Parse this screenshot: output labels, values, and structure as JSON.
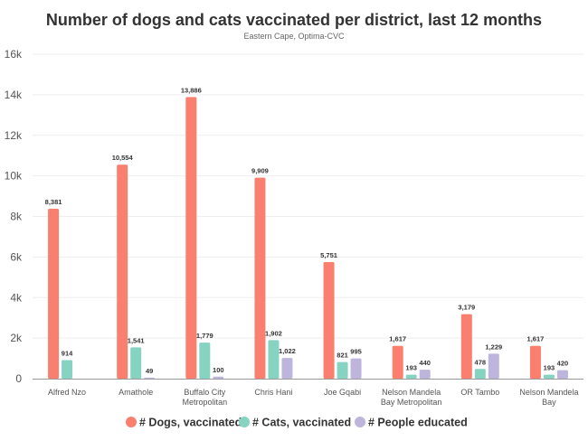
{
  "chart_data": {
    "type": "bar",
    "title": "Number of dogs and cats vaccinated per district, last 12 months",
    "subtitle": "Eastern Cape, Optima-CVC",
    "xlabel": "",
    "ylabel": "",
    "ylim": [
      0,
      16000
    ],
    "yticks": [
      0,
      2000,
      4000,
      6000,
      8000,
      10000,
      12000,
      14000,
      16000
    ],
    "ytick_labels": [
      "0",
      "2k",
      "4k",
      "6k",
      "8k",
      "10k",
      "12k",
      "14k",
      "16k"
    ],
    "grid": true,
    "legend_position": "bottom",
    "categories": [
      [
        "Alfred Nzo"
      ],
      [
        "Amathole"
      ],
      [
        "Buffalo City",
        "Metropolitan"
      ],
      [
        "Chris Hani"
      ],
      [
        "Joe Gqabi"
      ],
      [
        "Nelson Mandela",
        "Bay Metropolitan"
      ],
      [
        "OR Tambo"
      ],
      [
        "Nelson Mandela",
        "Bay"
      ]
    ],
    "series": [
      {
        "name": "# Dogs, vaccinated",
        "color": "#fa7f6f",
        "values": [
          8381,
          10554,
          13886,
          9909,
          5751,
          1617,
          3179,
          1617
        ],
        "labels": [
          "8,381",
          "10,554",
          "13,886",
          "9,909",
          "5,751",
          "1,617",
          "3,179",
          "1,617"
        ]
      },
      {
        "name": "# Cats, vaccinated",
        "color": "#86d3c2",
        "values": [
          914,
          1541,
          1779,
          1902,
          821,
          193,
          478,
          193
        ],
        "labels": [
          "914",
          "1,541",
          "1,779",
          "1,902",
          "821",
          "193",
          "478",
          "193"
        ]
      },
      {
        "name": "# People educated",
        "color": "#bdb5db",
        "values": [
          null,
          49,
          100,
          1022,
          995,
          440,
          1229,
          420
        ],
        "labels": [
          null,
          "49",
          "100",
          "1,022",
          "995",
          "440",
          "1,229",
          "420"
        ]
      }
    ]
  }
}
